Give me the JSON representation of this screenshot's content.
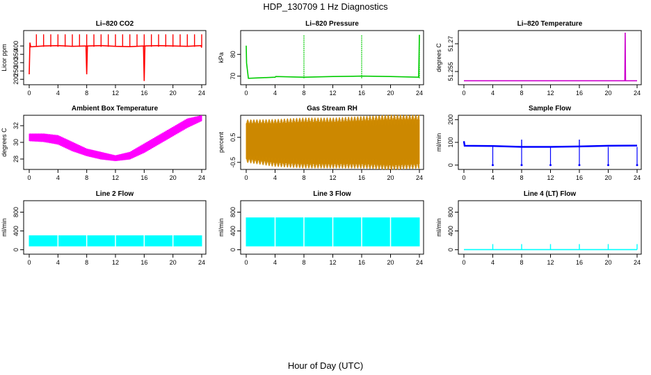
{
  "figure": {
    "title": "HDP_130709  1 Hz Diagnostics",
    "xlabel": "Hour of Day (UTC)"
  },
  "chart_data": [
    {
      "id": "co2",
      "type": "line",
      "title": "Li–820 CO2",
      "ylabel": "Licor ppm",
      "color": "#ff0000",
      "xlim": [
        0,
        24
      ],
      "ylim": [
        180,
        480
      ],
      "xticks": [
        0,
        4,
        8,
        12,
        16,
        20,
        24
      ],
      "yticks": [
        200,
        250,
        300,
        350,
        400
      ],
      "x": [
        0,
        0.1,
        0.2,
        2,
        4,
        6,
        7.9,
        8,
        8.1,
        10,
        12,
        14,
        15.9,
        16,
        16.1,
        18,
        20,
        22,
        23.9,
        24
      ],
      "y": [
        230,
        420,
        395,
        400,
        402,
        398,
        400,
        230,
        400,
        402,
        398,
        396,
        400,
        190,
        400,
        402,
        400,
        398,
        402,
        390
      ],
      "spikes": [
        1,
        2,
        3,
        4,
        5,
        6,
        7,
        8,
        9,
        10,
        11,
        12,
        13,
        14,
        15,
        16,
        17,
        18,
        19,
        20,
        21,
        22,
        23,
        24
      ],
      "spike_y": 470
    },
    {
      "id": "pressure",
      "type": "line",
      "title": "Li–820 Pressure",
      "ylabel": "kPa",
      "color": "#00cc00",
      "xlim": [
        0,
        24
      ],
      "ylim": [
        67,
        90
      ],
      "xticks": [
        0,
        4,
        8,
        12,
        16,
        20,
        24
      ],
      "yticks": [
        70,
        80
      ],
      "x": [
        0,
        0.05,
        0.3,
        4,
        4.1,
        8,
        12,
        16,
        20,
        23.9,
        24
      ],
      "y": [
        84,
        76,
        69,
        69.5,
        69.8,
        69.5,
        69.8,
        70,
        69.8,
        69.5,
        89
      ],
      "spikes": [
        8,
        16,
        24
      ],
      "spike_y": 89
    },
    {
      "id": "temp",
      "type": "line",
      "title": "Li–820 Temperature",
      "ylabel": "degrees C",
      "color": "#cc00cc",
      "xlim": [
        0,
        24
      ],
      "ylim": [
        51.249,
        51.276
      ],
      "xticks": [
        0,
        4,
        8,
        12,
        16,
        20,
        24
      ],
      "yticks": [
        51.255,
        51.27
      ],
      "x": [
        0,
        22.3,
        22.35,
        22.4,
        24
      ],
      "y": [
        51.25,
        51.25,
        51.276,
        51.25,
        51.25
      ]
    },
    {
      "id": "ambient",
      "type": "area",
      "title": "Ambient Box Temperature",
      "ylabel": "degrees C",
      "color": "#ff00ff",
      "xlim": [
        0,
        24
      ],
      "ylim": [
        27,
        33
      ],
      "xticks": [
        0,
        4,
        8,
        12,
        16,
        20,
        24
      ],
      "yticks": [
        28,
        30,
        32
      ],
      "x": [
        0,
        2,
        4,
        6,
        8,
        10,
        12,
        14,
        16,
        18,
        20,
        22,
        24
      ],
      "lower": [
        30.2,
        30.1,
        29.8,
        29.0,
        28.4,
        28.0,
        27.8,
        28.0,
        28.8,
        29.8,
        30.8,
        31.8,
        32.6
      ],
      "upper": [
        31.0,
        31.0,
        30.8,
        30.0,
        29.2,
        28.8,
        28.4,
        28.8,
        29.8,
        30.8,
        31.8,
        32.8,
        33.2
      ]
    },
    {
      "id": "rh",
      "type": "area",
      "title": "Gas Stream RH",
      "ylabel": "percent",
      "color": "#ffa500",
      "xlim": [
        0,
        24
      ],
      "ylim": [
        -0.7,
        1.3
      ],
      "xticks": [
        0,
        4,
        8,
        12,
        16,
        20,
        24
      ],
      "yticks": [
        -0.5,
        0.5
      ],
      "x": [
        0,
        4,
        8,
        12,
        16,
        20,
        24
      ],
      "lower": [
        -0.35,
        -0.5,
        -0.55,
        -0.55,
        -0.55,
        -0.6,
        -0.55
      ],
      "upper": [
        1.05,
        1.05,
        1.1,
        1.1,
        1.15,
        1.2,
        1.2
      ]
    },
    {
      "id": "sample",
      "type": "line",
      "title": "Sample Flow",
      "ylabel": "ml/min",
      "color": "#0000ff",
      "xlim": [
        0,
        24
      ],
      "ylim": [
        -10,
        210
      ],
      "xticks": [
        0,
        4,
        8,
        12,
        16,
        20,
        24
      ],
      "yticks": [
        0,
        100,
        200
      ],
      "x": [
        0,
        0.1,
        4,
        8,
        12,
        16,
        20,
        24
      ],
      "y": [
        105,
        85,
        84,
        80,
        80,
        82,
        85,
        86
      ],
      "dips": [
        4,
        8,
        12,
        16,
        20,
        24
      ],
      "dip_y": 0,
      "peaks": [
        8,
        16
      ],
      "peak_y": 112
    },
    {
      "id": "line2",
      "type": "area",
      "title": "Line 2 Flow",
      "ylabel": "ml/min",
      "color": "#00ffff",
      "xlim": [
        0,
        24
      ],
      "ylim": [
        -50,
        1000
      ],
      "xticks": [
        0,
        4,
        8,
        12,
        16,
        20,
        24
      ],
      "yticks": [
        0,
        400,
        800
      ],
      "x": [
        0,
        24
      ],
      "lower": [
        80,
        80
      ],
      "upper": [
        300,
        300
      ],
      "gaps": [
        4,
        8,
        12,
        16,
        20
      ]
    },
    {
      "id": "line3",
      "type": "area",
      "title": "Line 3 Flow",
      "ylabel": "ml/min",
      "color": "#00ffff",
      "xlim": [
        0,
        24
      ],
      "ylim": [
        -50,
        1000
      ],
      "xticks": [
        0,
        4,
        8,
        12,
        16,
        20,
        24
      ],
      "yticks": [
        0,
        400,
        800
      ],
      "x": [
        0,
        24
      ],
      "lower": [
        80,
        80
      ],
      "upper": [
        680,
        680
      ],
      "gaps": [
        4,
        8,
        12,
        16,
        20
      ]
    },
    {
      "id": "line4",
      "type": "line",
      "title": "Line 4 (LT) Flow",
      "ylabel": "ml/min",
      "color": "#00ffff",
      "xlim": [
        0,
        24
      ],
      "ylim": [
        -50,
        1000
      ],
      "xticks": [
        0,
        4,
        8,
        12,
        16,
        20,
        24
      ],
      "yticks": [
        0,
        400,
        800
      ],
      "x": [
        0,
        24
      ],
      "y": [
        3,
        3
      ],
      "spikes": [
        4,
        8,
        12,
        16,
        20,
        24
      ],
      "spike_y": 120
    }
  ]
}
